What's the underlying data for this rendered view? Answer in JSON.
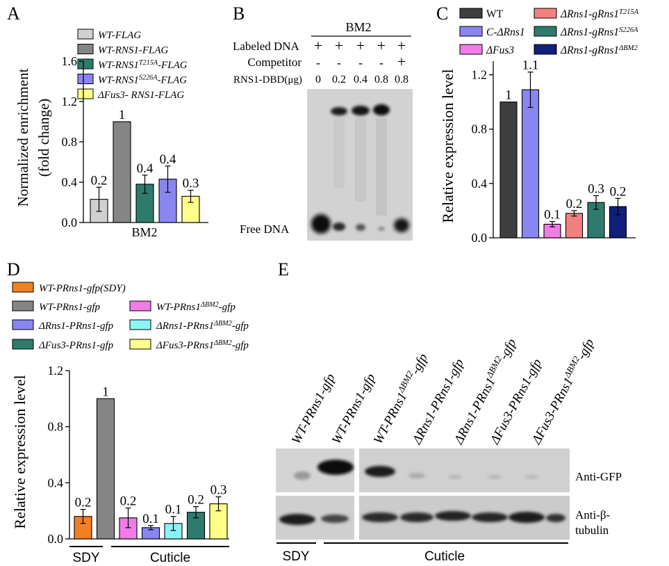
{
  "panels": {
    "A": {
      "letter": "A",
      "legend": [
        "WT-FLAG",
        "WT-RNS1-FLAG",
        "WT-RNS1T215A-FLAG",
        "WT-RNS1S226A-FLAG",
        "ΔFus3- RNS1-FLAG"
      ],
      "legend_parts": [
        {
          "a": "WT-FLAG"
        },
        {
          "a": "WT-RNS1-FLAG"
        },
        {
          "a": "WT-RNS1",
          "sup": "T215A",
          "b": "-FLAG"
        },
        {
          "a": "WT-RNS1",
          "sup": "S226A",
          "b": "-FLAG"
        },
        {
          "a": "ΔFus3- RNS1-FLAG"
        }
      ],
      "ylabel_line1": "Normalized enrichment",
      "ylabel_line2": "(fold change)",
      "xlabel": "BM2"
    },
    "B": {
      "letter": "B",
      "title": "BM2",
      "row_labels": [
        "Labeled DNA",
        "Competitor",
        "RNS1-DBD(μg)"
      ],
      "labeled_dna": [
        "+",
        "+",
        "+",
        "+",
        "+"
      ],
      "competitor": [
        "-",
        "-",
        "-",
        "-",
        "+"
      ],
      "amounts": [
        "0",
        "0.2",
        "0.4",
        "0.8",
        "0.8"
      ],
      "free_dna": "Free DNA"
    },
    "C": {
      "letter": "C",
      "legend": [
        "WT",
        "C-ΔRns1",
        "ΔFus3",
        "ΔRns1-gRns1T215A",
        "ΔRns1-gRns1S226A",
        "ΔRns1-gRns1ΔBM2"
      ],
      "ylabel": "Relative expression level"
    },
    "D": {
      "letter": "D",
      "legend": [
        "WT-PRns1-gfp(SDY)",
        "WT-PRns1-gfp",
        "WT-PRns1ΔBM2-gfp",
        "ΔRns1-PRns1-gfp",
        "ΔRns1-PRns1ΔBM2-gfp",
        "ΔFus3-PRns1-gfp",
        "ΔFus3-PRns1ΔBM2-gfp"
      ],
      "ylabel": "Relative expression level",
      "group_sdy": "SDY",
      "group_cuticle": "Cuticle"
    },
    "E": {
      "letter": "E",
      "lanes": [
        "WT-PRns1-gfp",
        "WT-PRns1-gfp",
        "WT-PRns1ΔBM2-gfp",
        "ΔRns1-PRns1-gfp",
        "ΔRns1-PRns1ΔBM2-gfp",
        "ΔFus3-PRns1-gfp",
        "ΔFus3-PRns1ΔBM2-gfp"
      ],
      "blot_labels": [
        "Anti-GFP",
        "Anti-β-",
        "tubulin"
      ],
      "group_sdy": "SDY",
      "group_cuticle": "Cuticle"
    }
  },
  "colors": {
    "light_gray": "#d0d0d0",
    "gray": "#858585",
    "teal": "#2e7b6d",
    "blue_violet": "#8a86f0",
    "yellow": "#ffff8a",
    "dark_gray": "#3e3e3e",
    "pink": "#f07ce6",
    "salmon": "#f28080",
    "navy": "#0f1f7a",
    "orange": "#f28022",
    "cyan": "#8cf4f4"
  },
  "chart_data": [
    {
      "panel": "A",
      "type": "bar",
      "categories": [
        "WT-FLAG",
        "WT-RNS1-FLAG",
        "WT-RNS1T215A-FLAG",
        "WT-RNS1S226A-FLAG",
        "ΔFus3- RNS1-FLAG"
      ],
      "values": [
        0.23,
        1.0,
        0.38,
        0.43,
        0.26
      ],
      "errors": [
        0.12,
        0.0,
        0.09,
        0.13,
        0.06
      ],
      "data_labels": [
        "0.2",
        "1",
        "0.4",
        "0.4",
        "0.3"
      ],
      "colors": [
        "#d0d0d0",
        "#858585",
        "#2e7b6d",
        "#8a86f0",
        "#ffff8a"
      ],
      "ylim": [
        0,
        1.6
      ],
      "yticks": [
        "0.0",
        "0.4",
        "0.8",
        "1.2",
        "1.6"
      ],
      "xlabel": "BM2",
      "ylabel": "Normalized enrichment (fold change)"
    },
    {
      "panel": "C",
      "type": "bar",
      "categories": [
        "WT",
        "C-ΔRns1",
        "ΔFus3",
        "ΔRns1-gRns1T215A",
        "ΔRns1-gRns1S226A",
        "ΔRns1-gRns1ΔBM2"
      ],
      "values": [
        1.0,
        1.09,
        0.1,
        0.18,
        0.26,
        0.23
      ],
      "errors": [
        0.0,
        0.13,
        0.02,
        0.02,
        0.05,
        0.06
      ],
      "data_labels": [
        "1",
        "1.1",
        "0.1",
        "0.2",
        "0.3",
        "0.2"
      ],
      "colors": [
        "#3e3e3e",
        "#8a86f0",
        "#f07ce6",
        "#f28080",
        "#2e7b6d",
        "#0f1f7a"
      ],
      "ylim": [
        0,
        1.3
      ],
      "yticks": [
        "0.0",
        "0.4",
        "0.8",
        "1.2"
      ],
      "ylabel": "Relative expression level"
    },
    {
      "panel": "D",
      "type": "bar",
      "categories": [
        "WT-PRns1-gfp(SDY)",
        "WT-PRns1-gfp",
        "WT-PRns1ΔBM2-gfp",
        "ΔRns1-PRns1-gfp",
        "ΔRns1-PRns1ΔBM2-gfp",
        "ΔFus3-PRns1-gfp",
        "ΔFus3-PRns1ΔBM2-gfp"
      ],
      "values": [
        0.16,
        1.0,
        0.15,
        0.08,
        0.11,
        0.19,
        0.25
      ],
      "errors": [
        0.05,
        0.0,
        0.07,
        0.015,
        0.05,
        0.04,
        0.05
      ],
      "data_labels": [
        "0.2",
        "1",
        "0.2",
        "0.1",
        "0.1",
        "0.2",
        "0.3"
      ],
      "colors": [
        "#f28022",
        "#858585",
        "#f07ce6",
        "#8a86f0",
        "#8cf4f4",
        "#2e7b6d",
        "#ffff8a"
      ],
      "ylim": [
        0,
        1.2
      ],
      "yticks": [
        "0.0",
        "0.4",
        "0.8",
        "1.2"
      ],
      "ylabel": "Relative expression level",
      "groups": [
        "SDY",
        "Cuticle"
      ]
    }
  ]
}
